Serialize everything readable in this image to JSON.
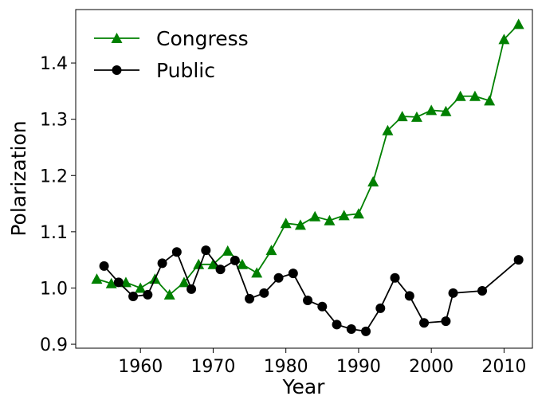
{
  "chart_data": {
    "type": "line",
    "x_label": "Year",
    "y_label": "Polarization",
    "xlim": [
      1951.1,
      2013.9
    ],
    "xticks": [
      1960,
      1970,
      1980,
      1990,
      2000,
      2010
    ],
    "ylim": [
      0.893,
      1.495
    ],
    "yticks": [
      0.9,
      {
        "value": 1.0,
        "label": "1.0"
      },
      1.1,
      1.2,
      1.3,
      1.4
    ],
    "legend": "upper left",
    "series": [
      {
        "name": "Congress",
        "color": "#008000",
        "marker": "triangle",
        "x": [
          1954,
          1956,
          1958,
          1960,
          1962,
          1964,
          1966,
          1968,
          1970,
          1972,
          1974,
          1976,
          1978,
          1980,
          1982,
          1984,
          1986,
          1988,
          1990,
          1992,
          1994,
          1996,
          1998,
          2000,
          2002,
          2004,
          2006,
          2008,
          2010,
          2012
        ],
        "values": [
          1.016,
          1.008,
          1.01,
          1.0,
          1.016,
          0.988,
          1.01,
          1.042,
          1.042,
          1.066,
          1.042,
          1.027,
          1.067,
          1.115,
          1.112,
          1.127,
          1.12,
          1.129,
          1.132,
          1.189,
          1.28,
          1.305,
          1.304,
          1.316,
          1.314,
          1.341,
          1.341,
          1.333,
          1.442,
          1.469
        ]
      },
      {
        "name": "Public",
        "color": "#000000",
        "marker": "circle",
        "x": [
          1955,
          1957,
          1959,
          1961,
          1963,
          1965,
          1967,
          1969,
          1971,
          1973,
          1975,
          1977,
          1979,
          1981,
          1983,
          1985,
          1987,
          1989,
          1991,
          1993,
          1995,
          1997,
          1999,
          2002,
          2003,
          2007,
          2012
        ],
        "values": [
          1.039,
          1.01,
          0.985,
          0.988,
          1.044,
          1.064,
          0.998,
          1.067,
          1.033,
          1.049,
          0.981,
          0.991,
          1.018,
          1.026,
          0.978,
          0.967,
          0.935,
          0.927,
          0.923,
          0.964,
          1.018,
          0.986,
          0.938,
          0.941,
          0.991,
          0.995,
          1.05
        ]
      }
    ]
  }
}
